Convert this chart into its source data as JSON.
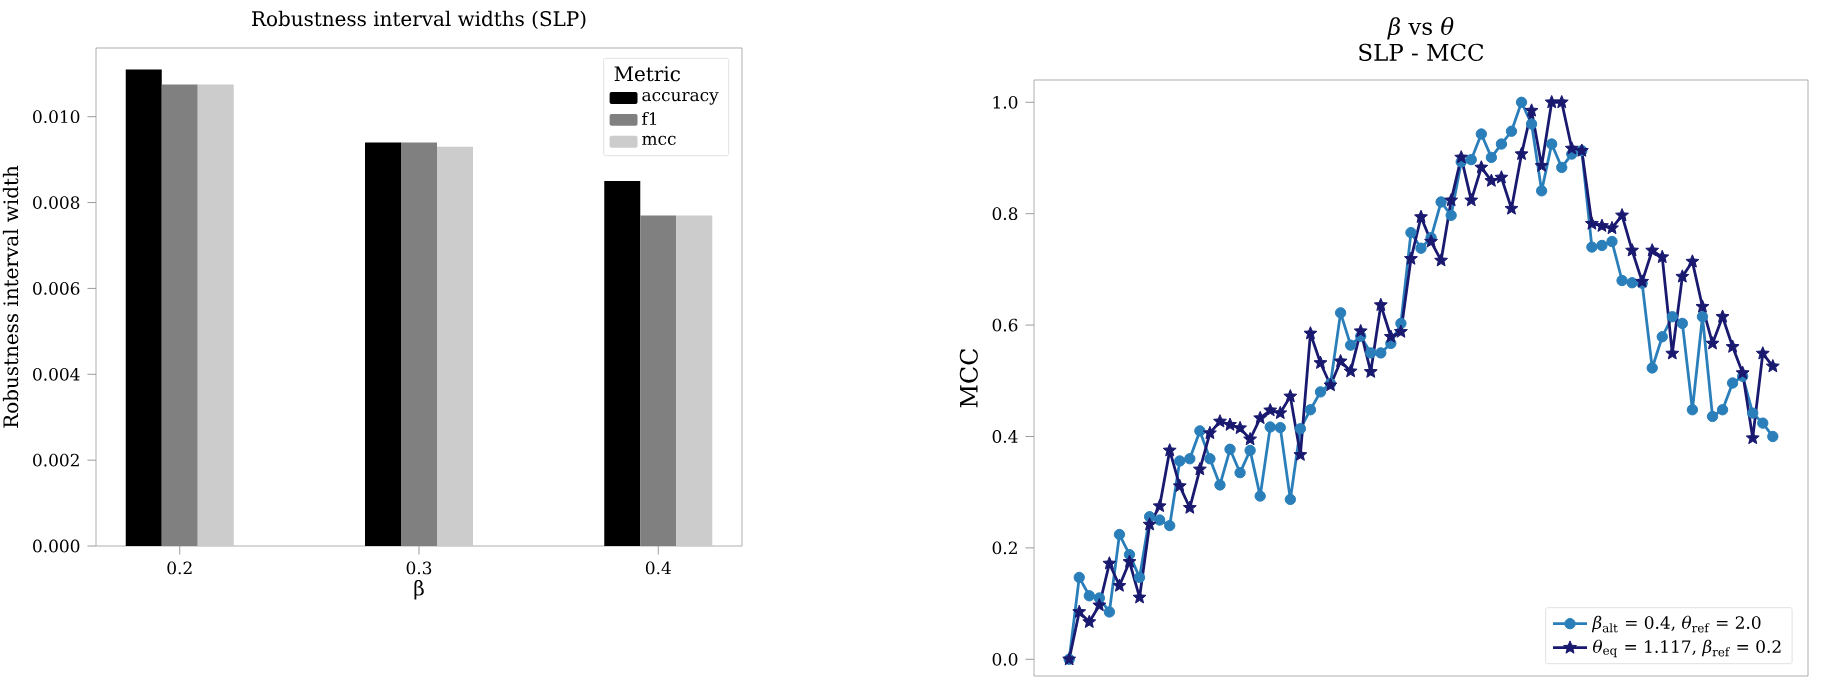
{
  "chart_data": [
    {
      "type": "bar",
      "title": "Robustness interval widths (SLP)",
      "xlabel": "β",
      "ylabel": "Robustness interval width",
      "legend_title": "Metric",
      "categories": [
        "0.2",
        "0.3",
        "0.4"
      ],
      "series": [
        {
          "name": "accuracy",
          "color": "#000000",
          "values": [
            0.0111,
            0.0094,
            0.0085
          ]
        },
        {
          "name": "f1",
          "color": "#808080",
          "values": [
            0.01075,
            0.0094,
            0.0077
          ]
        },
        {
          "name": "mcc",
          "color": "#cccccc",
          "values": [
            0.01075,
            0.0093,
            0.0077
          ]
        }
      ],
      "ylim": [
        0,
        0.0116
      ],
      "yticks": [
        {
          "value": 0,
          "label": "0.000"
        },
        {
          "value": 0.002,
          "label": "0.002"
        },
        {
          "value": 0.004,
          "label": "0.004"
        },
        {
          "value": 0.006,
          "label": "0.006"
        },
        {
          "value": 0.008,
          "label": "0.008"
        },
        {
          "value": 0.01,
          "label": "0.010"
        }
      ],
      "grid": false,
      "legend": "top right"
    },
    {
      "type": "line",
      "title": "*β* vs *θ*",
      "subtitle": "SLP - MCC",
      "ylabel": "MCC",
      "categories": [
        null,
        null,
        null,
        null,
        null,
        null,
        null,
        null,
        null,
        null,
        null,
        null,
        null,
        null,
        null,
        null,
        null,
        null,
        null,
        null,
        null,
        null,
        null,
        null,
        null,
        null,
        null,
        null,
        null,
        null,
        null,
        null,
        null,
        null,
        null,
        null,
        null,
        null,
        null,
        null,
        null,
        null,
        null,
        null,
        null,
        null,
        null,
        null,
        null,
        null,
        null,
        null,
        null,
        null,
        null,
        null,
        null,
        null,
        null,
        null,
        null,
        null,
        null,
        null,
        null,
        null,
        null,
        null,
        null,
        null,
        null
      ],
      "series": [
        {
          "name": "*β*$_{alt}$ = 0.4, *θ*$_{ref}$ = 2.0",
          "color": "#2a7fba",
          "marker": "circle",
          "values": [
            0.0,
            0.147,
            0.114,
            0.11,
            0.085,
            0.224,
            0.188,
            0.147,
            0.256,
            0.25,
            0.24,
            0.356,
            0.36,
            0.41,
            0.36,
            0.313,
            0.377,
            0.335,
            0.375,
            0.293,
            0.417,
            0.416,
            0.287,
            0.414,
            0.448,
            0.48,
            0.495,
            0.622,
            0.564,
            0.58,
            0.55,
            0.55,
            0.567,
            0.603,
            0.766,
            0.738,
            0.757,
            0.821,
            0.797,
            0.893,
            0.897,
            0.943,
            0.901,
            0.925,
            0.948,
            1.0,
            0.961,
            0.841,
            0.925,
            0.883,
            0.907,
            0.913,
            0.74,
            0.743,
            0.75,
            0.68,
            0.676,
            0.675,
            0.523,
            0.579,
            0.615,
            0.603,
            0.448,
            0.615,
            0.436,
            0.448,
            0.496,
            0.508,
            0.442,
            0.424,
            0.4
          ]
        },
        {
          "name": "*θ*$_{eq}$ = 1.117, *β*$_{ref}$ = 0.2",
          "color": "#191970",
          "marker": "star",
          "values": [
            0.0,
            0.085,
            0.067,
            0.097,
            0.172,
            0.132,
            0.175,
            0.111,
            0.242,
            0.275,
            0.375,
            0.311,
            0.272,
            0.341,
            0.406,
            0.427,
            0.421,
            0.415,
            0.395,
            0.433,
            0.447,
            0.442,
            0.472,
            0.367,
            0.585,
            0.532,
            0.492,
            0.535,
            0.517,
            0.589,
            0.516,
            0.636,
            0.579,
            0.588,
            0.719,
            0.794,
            0.75,
            0.716,
            0.824,
            0.901,
            0.824,
            0.883,
            0.859,
            0.865,
            0.809,
            0.907,
            0.985,
            0.886,
            1.0,
            1.0,
            0.917,
            0.913,
            0.782,
            0.778,
            0.774,
            0.797,
            0.734,
            0.678,
            0.734,
            0.722,
            0.549,
            0.687,
            0.714,
            0.633,
            0.567,
            0.615,
            0.561,
            0.514,
            0.397,
            0.549,
            0.526
          ]
        }
      ],
      "ylim": [
        -0.03,
        1.04
      ],
      "yticks": [
        {
          "value": 0,
          "label": "0.0"
        },
        {
          "value": 0.2,
          "label": "0.2"
        },
        {
          "value": 0.4,
          "label": "0.4"
        },
        {
          "value": 0.6,
          "label": "0.6"
        },
        {
          "value": 0.8,
          "label": "0.8"
        },
        {
          "value": 1.0,
          "label": "1.0"
        }
      ],
      "tick_labels": "y",
      "grid": false,
      "legend": "bottom right"
    }
  ]
}
